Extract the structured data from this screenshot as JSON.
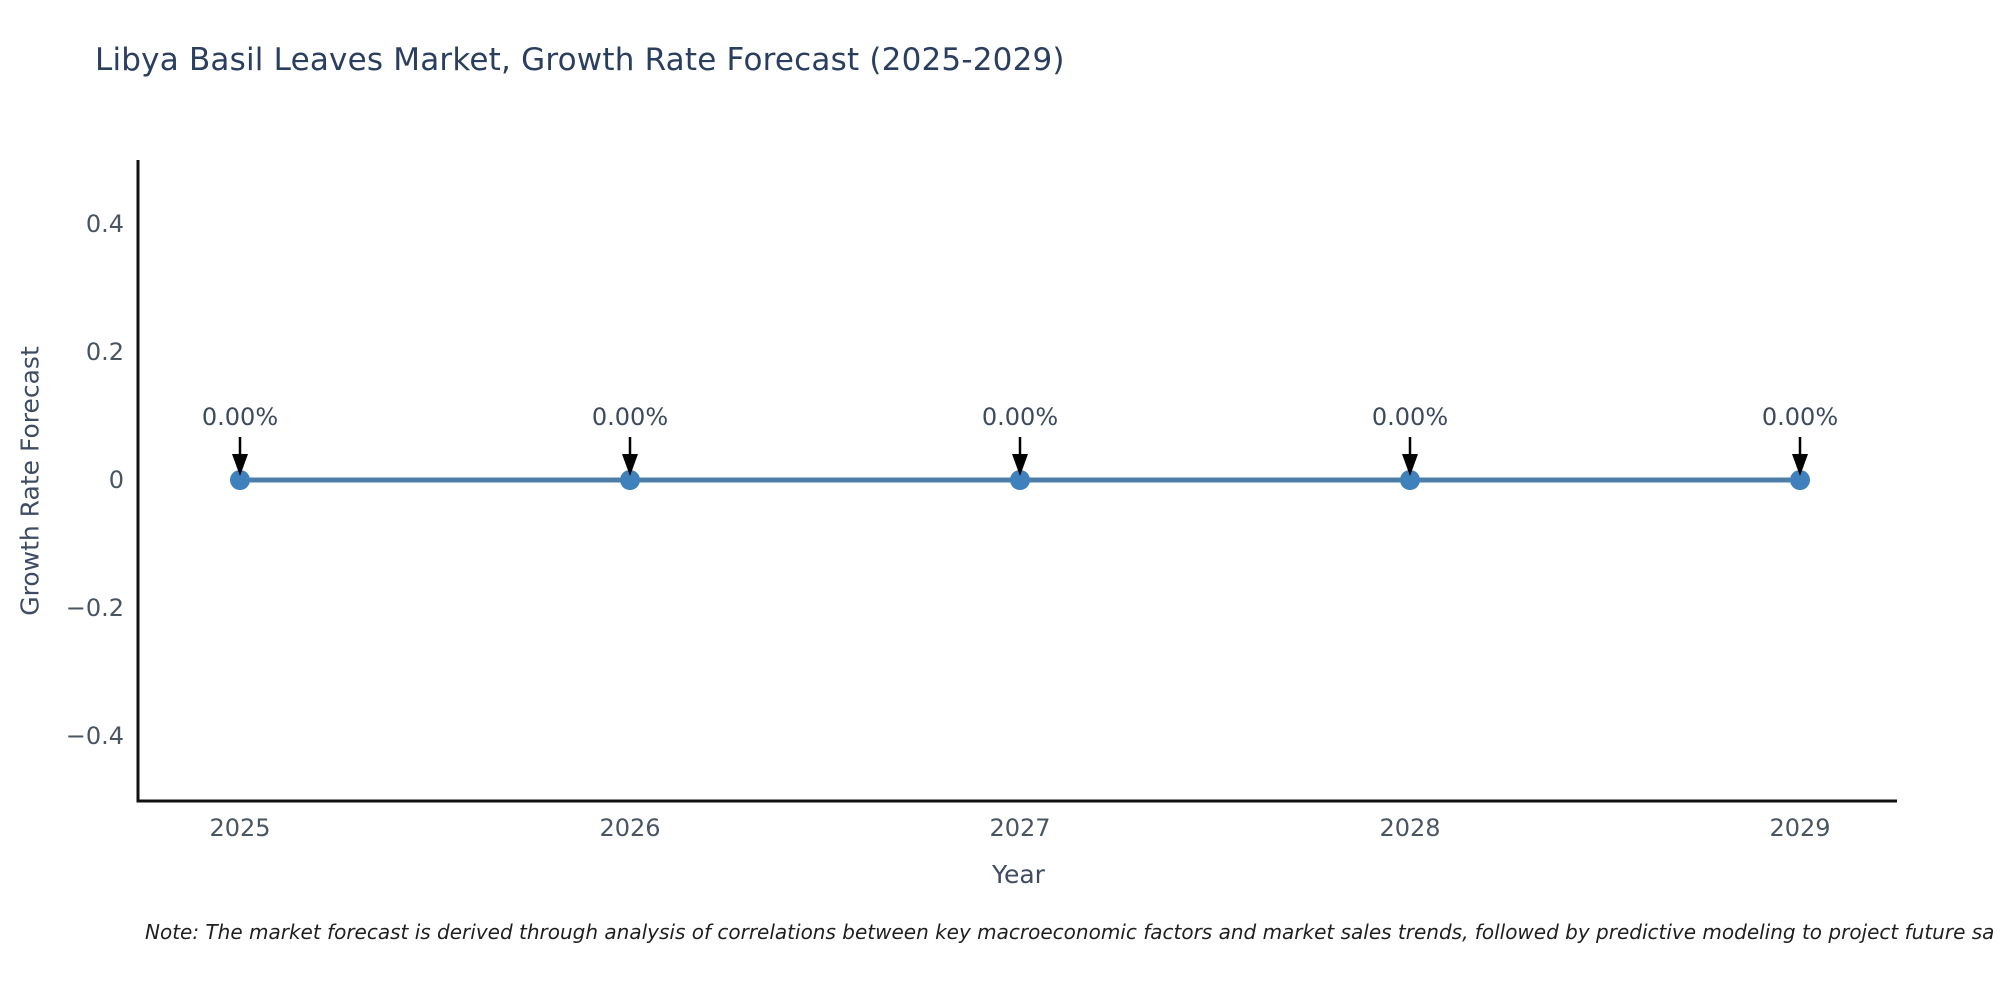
{
  "note": "Note: The market forecast is derived through analysis of correlations between key macroeconomic factors and market sales trends, followed by predictive modeling to project future sa",
  "chart_data": {
    "type": "line",
    "title": "Libya Basil Leaves Market, Growth Rate Forecast (2025-2029)",
    "categories": [
      "2025",
      "2026",
      "2027",
      "2028",
      "2029"
    ],
    "values": [
      0,
      0,
      0,
      0,
      0
    ],
    "point_labels": [
      "0.00%",
      "0.00%",
      "0.00%",
      "0.00%",
      "0.00%"
    ],
    "xlabel": "Year",
    "ylabel": "Growth Rate Forecast",
    "ylim": [
      -0.5,
      0.5
    ],
    "yticks": [
      0.4,
      0.2,
      0,
      -0.2,
      -0.4
    ],
    "ytick_labels": [
      "0.4",
      "0.2",
      "0",
      "−0.2",
      "−0.4"
    ],
    "grid": false,
    "legend": "none",
    "annotation_style": "down-arrow-to-point",
    "colors": {
      "line": "#4d7ea8",
      "marker": "#3f81bd",
      "arrow": "#000000",
      "spine": "#111111",
      "title": "#2a3f5f",
      "tick": "#4a5563",
      "annotation": "#3b4a5c",
      "axis_label": "#3d4c63",
      "note": "#1f1f1f"
    }
  }
}
